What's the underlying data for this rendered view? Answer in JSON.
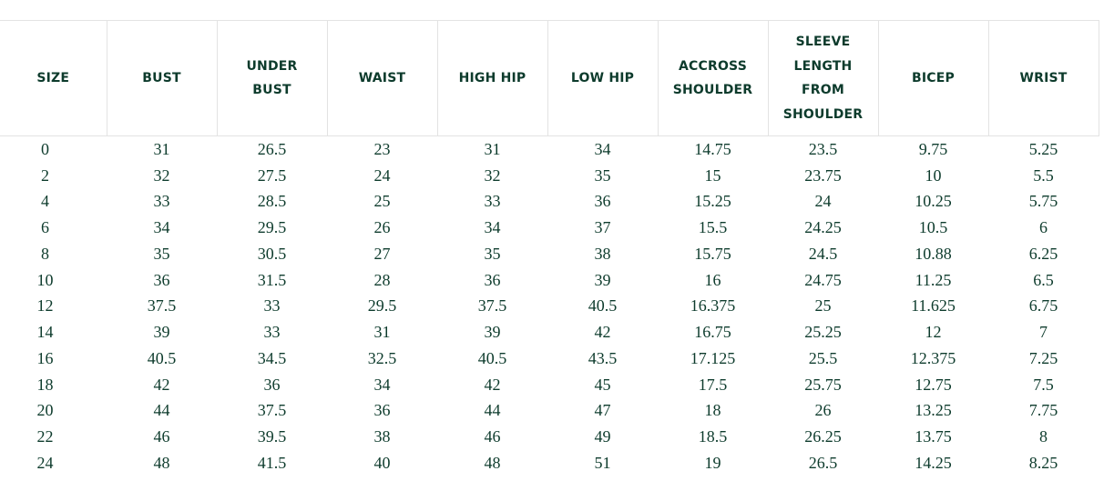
{
  "headers": [
    [
      "SIZE"
    ],
    [
      "BUST"
    ],
    [
      "UNDER",
      "BUST"
    ],
    [
      "WAIST"
    ],
    [
      "HIGH HIP"
    ],
    [
      "LOW HIP"
    ],
    [
      "ACCROSS",
      "SHOULDER"
    ],
    [
      "SLEEVE",
      "LENGTH",
      "FROM",
      "SHOULDER"
    ],
    [
      "BICEP"
    ],
    [
      "WRIST"
    ]
  ],
  "rows": [
    [
      "0",
      "31",
      "26.5",
      "23",
      "31",
      "34",
      "14.75",
      "23.5",
      "9.75",
      "5.25"
    ],
    [
      "2",
      "32",
      "27.5",
      "24",
      "32",
      "35",
      "15",
      "23.75",
      "10",
      "5.5"
    ],
    [
      "4",
      "33",
      "28.5",
      "25",
      "33",
      "36",
      "15.25",
      "24",
      "10.25",
      "5.75"
    ],
    [
      "6",
      "34",
      "29.5",
      "26",
      "34",
      "37",
      "15.5",
      "24.25",
      "10.5",
      "6"
    ],
    [
      "8",
      "35",
      "30.5",
      "27",
      "35",
      "38",
      "15.75",
      "24.5",
      "10.88",
      "6.25"
    ],
    [
      "10",
      "36",
      "31.5",
      "28",
      "36",
      "39",
      "16",
      "24.75",
      "11.25",
      "6.5"
    ],
    [
      "12",
      "37.5",
      "33",
      "29.5",
      "37.5",
      "40.5",
      "16.375",
      "25",
      "11.625",
      "6.75"
    ],
    [
      "14",
      "39",
      "33",
      "31",
      "39",
      "42",
      "16.75",
      "25.25",
      "12",
      "7"
    ],
    [
      "16",
      "40.5",
      "34.5",
      "32.5",
      "40.5",
      "43.5",
      "17.125",
      "25.5",
      "12.375",
      "7.25"
    ],
    [
      "18",
      "42",
      "36",
      "34",
      "42",
      "45",
      "17.5",
      "25.75",
      "12.75",
      "7.5"
    ],
    [
      "20",
      "44",
      "37.5",
      "36",
      "44",
      "47",
      "18",
      "26",
      "13.25",
      "7.75"
    ],
    [
      "22",
      "46",
      "39.5",
      "38",
      "46",
      "49",
      "18.5",
      "26.25",
      "13.75",
      "8"
    ],
    [
      "24",
      "48",
      "41.5",
      "40",
      "48",
      "51",
      "19",
      "26.5",
      "14.25",
      "8.25"
    ]
  ],
  "colors": {
    "text": "#0d3b2c",
    "border": "#e3e3e3"
  }
}
